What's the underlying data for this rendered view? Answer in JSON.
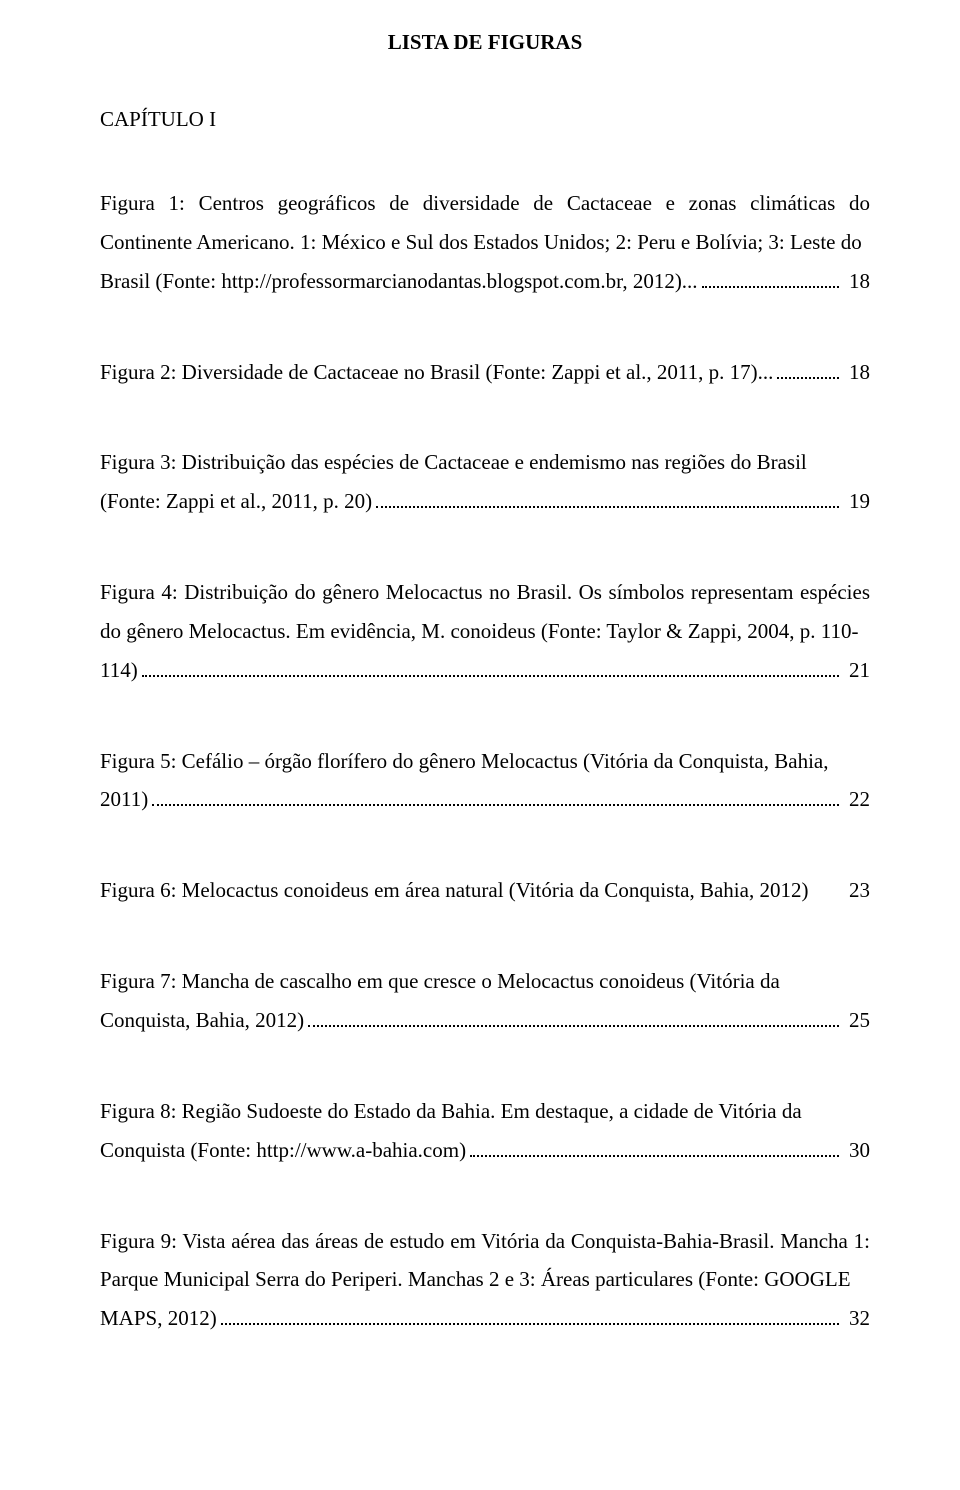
{
  "title": "LISTA DE FIGURAS",
  "chapter": "CAPÍTULO I",
  "entries": [
    {
      "pre": "Figura 1: Centros geográficos de diversidade de Cactaceae e zonas climáticas do Continente Americano. 1: México e Sul dos Estados Unidos; 2: Peru e Bolívia; 3: Leste do Brasil (",
      "src_open": "Fonte: ",
      "src": "http://professormarcianodantas.blogspot.com.br, 2012)",
      "last": "...",
      "page": "18"
    },
    {
      "pre": "Figura 2: Diversidade de Cactaceae no Brasil (",
      "src_open": "Fonte: ",
      "src": "Zappi et al., 2011, p. 17)",
      "last": "...",
      "page": "18"
    },
    {
      "pre": "Figura 3: Distribuição das espécies de Cactaceae e endemismo nas regiões do Brasil (",
      "src_open": "Fonte: ",
      "src": "Zappi et al., 2011, p. 20)",
      "last": "",
      "page": "19"
    },
    {
      "pre": "Figura 4: Distribuição do gênero Melocactus no Brasil. Os símbolos representam espécies do gênero Melocactus. Em evidência, M. conoideus (",
      "src_open": "Fonte: ",
      "src": "Taylor & Zappi, 2004, p. 110-114)",
      "last": "",
      "page": "21"
    },
    {
      "pre": "Figura 5: Cefálio – órgão florífero do gênero Melocactus (",
      "src_open": "",
      "src": "Vitória da Conquista, Bahia, 2011)",
      "last": "",
      "page": "22"
    },
    {
      "oneline": true,
      "text": "Figura 6: Melocactus conoideus em área natural (Vitória da Conquista, Bahia, 2012)",
      "page": "23"
    },
    {
      "pre": "Figura 7: Mancha de cascalho em que cresce o Melocactus conoideus (",
      "src_open": "",
      "src": "Vitória da Conquista, Bahia, 2012)",
      "last": "",
      "page": "25"
    },
    {
      "pre": "Figura 8: Região Sudoeste do Estado da Bahia. Em destaque, a cidade de Vitória da Conquista (",
      "src_open": "Fonte: ",
      "src": "http://www.a-bahia.com)",
      "last": "",
      "page": "30"
    },
    {
      "pre": "Figura 9: Vista aérea das áreas de estudo em Vitória da Conquista-Bahia-Brasil. Mancha 1: Parque Municipal Serra do Periperi. Manchas 2 e 3: Áreas particulares (",
      "src_open": "Fonte: ",
      "src": "GOOGLE MAPS, 2012)",
      "last": "",
      "page": "32"
    }
  ]
}
